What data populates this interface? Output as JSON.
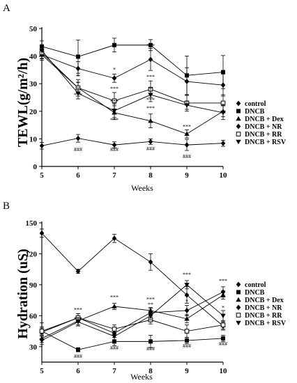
{
  "chart_data": [
    {
      "panel_label": "A",
      "type": "line",
      "ylabel": "TEWL(g/m²/h)",
      "xlabel": "Weeks",
      "x": [
        5,
        6,
        7,
        8,
        9,
        10
      ],
      "xlim": [
        5,
        10
      ],
      "ylim": [
        0,
        50
      ],
      "yticks": [
        0,
        10,
        20,
        30,
        40,
        50
      ],
      "series": [
        {
          "name": "control",
          "marker": "diamond-filled",
          "values": [
            7.5,
            10.2,
            7.8,
            9.0,
            7.8,
            8.4
          ],
          "errors": [
            1.2,
            1.4,
            1.1,
            1.0,
            2.0,
            1.1
          ]
        },
        {
          "name": "DNCB",
          "marker": "square-filled",
          "values": [
            43.5,
            39.8,
            44.0,
            44.0,
            33.0,
            34.2
          ],
          "errors": [
            2.0,
            6.0,
            2.5,
            2.0,
            7.0,
            6.0
          ]
        },
        {
          "name": "DNCB + Dex",
          "marker": "triangle-up",
          "values": [
            40.5,
            28.5,
            19.5,
            16.5,
            11.8,
            20.0
          ],
          "errors": [
            1.5,
            2.0,
            2.5,
            2.5,
            1.5,
            2.0
          ]
        },
        {
          "name": "DNCB + NR",
          "marker": "diamond-filled",
          "values": [
            40.5,
            35.5,
            32.0,
            38.8,
            30.8,
            29.5
          ],
          "errors": [
            2.0,
            2.5,
            1.5,
            4.0,
            5.0,
            4.0
          ]
        },
        {
          "name": "DNCB + RR",
          "marker": "square-open",
          "values": [
            41.2,
            28.5,
            23.8,
            28.0,
            23.0,
            23.0
          ],
          "errors": [
            2.0,
            3.0,
            3.0,
            3.0,
            3.0,
            3.0
          ]
        },
        {
          "name": "DNCB + RSV",
          "marker": "triangle-down",
          "values": [
            42.0,
            26.5,
            20.2,
            26.0,
            22.2,
            19.5
          ],
          "errors": [
            1.5,
            2.0,
            2.5,
            2.5,
            1.5,
            2.5
          ]
        }
      ],
      "annotations": [
        {
          "x": 6,
          "y": 32.0,
          "text": "*"
        },
        {
          "x": 6,
          "y": 29.5,
          "text": "*"
        },
        {
          "x": 6,
          "y": 25.2,
          "text": "***"
        },
        {
          "x": 7,
          "y": 34.5,
          "text": "*"
        },
        {
          "x": 7,
          "y": 27.5,
          "text": "***"
        },
        {
          "x": 7,
          "y": 22.8,
          "text": "***"
        },
        {
          "x": 7,
          "y": 16.2,
          "text": "***"
        },
        {
          "x": 8,
          "y": 43.0,
          "text": "***"
        },
        {
          "x": 8,
          "y": 31.8,
          "text": "***"
        },
        {
          "x": 8,
          "y": 23.5,
          "text": "***"
        },
        {
          "x": 8,
          "y": 20.5,
          "text": "***"
        },
        {
          "x": 9,
          "y": 13.8,
          "text": "***"
        },
        {
          "x": 10,
          "y": 21.5,
          "text": "*"
        },
        {
          "x": 10,
          "y": 19.0,
          "text": "**"
        },
        {
          "x": 6,
          "y": 5.6,
          "text": "###"
        },
        {
          "x": 7,
          "y": 5.6,
          "text": "###"
        },
        {
          "x": 8,
          "y": 5.8,
          "text": "###"
        },
        {
          "x": 9,
          "y": 3.0,
          "text": "###"
        }
      ]
    },
    {
      "panel_label": "B",
      "type": "line",
      "ylabel": "Hydration (uS)",
      "xlabel": "Weeks",
      "x": [
        5,
        6,
        7,
        8,
        9,
        10
      ],
      "xlim": [
        5,
        10
      ],
      "ylim": [
        15,
        150
      ],
      "yticks": [
        30,
        60,
        90,
        120,
        150
      ],
      "series": [
        {
          "name": "control",
          "marker": "diamond-filled",
          "values": [
            140,
            103,
            135,
            112,
            80,
            50
          ],
          "errors": [
            4,
            2,
            4,
            8,
            8,
            4
          ]
        },
        {
          "name": "DNCB",
          "marker": "square-filled",
          "values": [
            45,
            27,
            35,
            35,
            36,
            38
          ],
          "errors": [
            8,
            2,
            4,
            6,
            3,
            3
          ]
        },
        {
          "name": "DNCB + Dex",
          "marker": "triangle-up",
          "values": [
            38,
            55,
            69,
            65,
            57,
            80
          ],
          "errors": [
            4,
            4,
            3,
            3,
            4,
            4
          ]
        },
        {
          "name": "DNCB + NR",
          "marker": "diamond-filled",
          "values": [
            44,
            58,
            43,
            63,
            65,
            83
          ],
          "errors": [
            4,
            4,
            4,
            4,
            5,
            5
          ]
        },
        {
          "name": "DNCB + RR",
          "marker": "square-open",
          "values": [
            45,
            58,
            47,
            56,
            45,
            51
          ],
          "errors": [
            4,
            4,
            4,
            4,
            6,
            4
          ]
        },
        {
          "name": "DNCB + RSV",
          "marker": "triangle-down",
          "values": [
            36,
            54,
            40,
            60,
            90,
            60
          ],
          "errors": [
            4,
            4,
            4,
            4,
            4,
            5
          ]
        }
      ],
      "annotations": [
        {
          "x": 6,
          "y": 64,
          "text": "***"
        },
        {
          "x": 6,
          "y": 55,
          "text": "***"
        },
        {
          "x": 7,
          "y": 76,
          "text": "***"
        },
        {
          "x": 8,
          "y": 74,
          "text": "***"
        },
        {
          "x": 8,
          "y": 69,
          "text": "**"
        },
        {
          "x": 8,
          "y": 60,
          "text": "*"
        },
        {
          "x": 9,
          "y": 98,
          "text": "***"
        },
        {
          "x": 9,
          "y": 72,
          "text": "*"
        },
        {
          "x": 9,
          "y": 58,
          "text": "*"
        },
        {
          "x": 10,
          "y": 92,
          "text": "***"
        },
        {
          "x": 10,
          "y": 66,
          "text": "*"
        },
        {
          "x": 6,
          "y": 19,
          "text": "###"
        },
        {
          "x": 7,
          "y": 27,
          "text": "###"
        },
        {
          "x": 8,
          "y": 26,
          "text": "###"
        },
        {
          "x": 9,
          "y": 29,
          "text": "###"
        },
        {
          "x": 10,
          "y": 31,
          "text": "###"
        }
      ]
    }
  ]
}
